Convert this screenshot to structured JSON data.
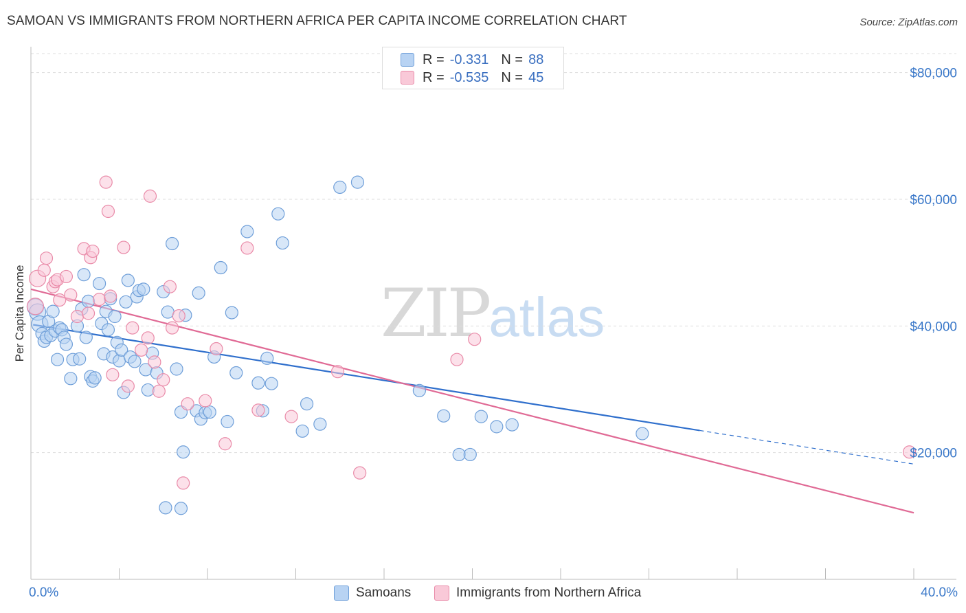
{
  "title": "SAMOAN VS IMMIGRANTS FROM NORTHERN AFRICA PER CAPITA INCOME CORRELATION CHART",
  "source": "Source: ZipAtlas.com",
  "watermark": {
    "zip": "ZIP",
    "atlas": "atlas"
  },
  "legend_top": [
    {
      "r_label": "R =",
      "r_value": "-0.331",
      "n_label": "N =",
      "n_value": "88"
    },
    {
      "r_label": "R =",
      "r_value": "-0.535",
      "n_label": "N =",
      "n_value": "45"
    }
  ],
  "legend_bottom": [
    "Samoans",
    "Immigrants from Northern Africa"
  ],
  "x_labels": {
    "left": "0.0%",
    "right": "40.0%"
  },
  "colors": {
    "blue": "#6f9fd9",
    "blue_fill": "#b8d3f3",
    "blue_line": "#2f6fcc",
    "pink": "#e98aa8",
    "pink_fill": "#f9c9d8",
    "pink_line": "#e06a95",
    "tick": "#3a78c9",
    "grid": "#dddddd"
  },
  "chart_data": {
    "type": "scatter",
    "title": "SAMOAN VS IMMIGRANTS FROM NORTHERN AFRICA PER CAPITA INCOME CORRELATION CHART",
    "xlabel": "",
    "ylabel": "Per Capita Income",
    "xlim": [
      0,
      40
    ],
    "ylim": [
      0,
      83000
    ],
    "y_ticks": [
      20000,
      40000,
      60000,
      80000
    ],
    "y_tick_labels": [
      "$20,000",
      "$40,000",
      "$60,000",
      "$80,000"
    ],
    "grid": true,
    "legend_placement": "bottom",
    "series": [
      {
        "name": "Samoans",
        "r": -0.331,
        "n": 88,
        "trend": {
          "x0": 0.1,
          "y0": 40200,
          "x1": 30.3,
          "y1": 23500,
          "dashed_to_x": 40,
          "dashed_to_y": 18200
        },
        "points": [
          [
            0.2,
            43000
          ],
          [
            0.3,
            42200
          ],
          [
            0.4,
            40300
          ],
          [
            0.5,
            38800
          ],
          [
            0.6,
            37600
          ],
          [
            0.7,
            38200
          ],
          [
            0.8,
            40700
          ],
          [
            0.9,
            38500
          ],
          [
            1.0,
            42300
          ],
          [
            1.1,
            39200
          ],
          [
            1.2,
            34700
          ],
          [
            1.3,
            39700
          ],
          [
            1.4,
            39400
          ],
          [
            1.5,
            38200
          ],
          [
            1.6,
            37100
          ],
          [
            1.8,
            31700
          ],
          [
            1.9,
            34700
          ],
          [
            2.1,
            40000
          ],
          [
            2.2,
            34800
          ],
          [
            2.3,
            42700
          ],
          [
            2.4,
            48100
          ],
          [
            2.5,
            38200
          ],
          [
            2.6,
            43900
          ],
          [
            2.7,
            32000
          ],
          [
            2.8,
            31300
          ],
          [
            2.9,
            31800
          ],
          [
            3.1,
            46700
          ],
          [
            3.2,
            40400
          ],
          [
            3.3,
            35600
          ],
          [
            3.4,
            42300
          ],
          [
            3.5,
            39400
          ],
          [
            3.6,
            44300
          ],
          [
            3.7,
            35100
          ],
          [
            3.8,
            41500
          ],
          [
            3.9,
            37400
          ],
          [
            4.0,
            34500
          ],
          [
            4.1,
            36200
          ],
          [
            4.2,
            29500
          ],
          [
            4.3,
            43800
          ],
          [
            4.4,
            47200
          ],
          [
            4.5,
            35100
          ],
          [
            4.7,
            34400
          ],
          [
            4.8,
            44600
          ],
          [
            4.9,
            45600
          ],
          [
            5.1,
            45800
          ],
          [
            5.2,
            33100
          ],
          [
            5.3,
            29900
          ],
          [
            5.5,
            35700
          ],
          [
            5.7,
            32600
          ],
          [
            6.0,
            45400
          ],
          [
            6.2,
            42200
          ],
          [
            6.4,
            53000
          ],
          [
            6.6,
            33200
          ],
          [
            6.8,
            26400
          ],
          [
            6.9,
            20100
          ],
          [
            7.0,
            41700
          ],
          [
            7.5,
            26600
          ],
          [
            7.6,
            45200
          ],
          [
            7.7,
            25300
          ],
          [
            7.9,
            26300
          ],
          [
            8.1,
            26400
          ],
          [
            8.3,
            35100
          ],
          [
            8.6,
            49200
          ],
          [
            8.9,
            24900
          ],
          [
            9.1,
            42100
          ],
          [
            9.3,
            32600
          ],
          [
            9.8,
            54900
          ],
          [
            10.3,
            31000
          ],
          [
            10.5,
            26600
          ],
          [
            10.7,
            34900
          ],
          [
            10.9,
            30900
          ],
          [
            11.2,
            57700
          ],
          [
            11.4,
            53100
          ],
          [
            12.3,
            23400
          ],
          [
            12.5,
            27700
          ],
          [
            13.1,
            24500
          ],
          [
            14.0,
            61900
          ],
          [
            14.8,
            62700
          ],
          [
            17.6,
            29800
          ],
          [
            18.7,
            25800
          ],
          [
            19.4,
            19700
          ],
          [
            19.9,
            19700
          ],
          [
            20.4,
            25700
          ],
          [
            21.1,
            24100
          ],
          [
            21.8,
            24400
          ],
          [
            27.7,
            23000
          ],
          [
            6.1,
            11300
          ],
          [
            6.8,
            11200
          ]
        ]
      },
      {
        "name": "Immigrants from Northern Africa",
        "r": -0.535,
        "n": 45,
        "trend": {
          "x0": 0.0,
          "y0": 45800,
          "x1": 40.0,
          "y1": 10500
        },
        "points": [
          [
            0.2,
            43100
          ],
          [
            0.3,
            47500
          ],
          [
            0.6,
            48800
          ],
          [
            0.7,
            50700
          ],
          [
            1.0,
            46200
          ],
          [
            1.1,
            47000
          ],
          [
            1.2,
            47300
          ],
          [
            1.3,
            44100
          ],
          [
            1.6,
            47800
          ],
          [
            1.8,
            44900
          ],
          [
            2.1,
            41500
          ],
          [
            2.4,
            52200
          ],
          [
            2.6,
            42000
          ],
          [
            2.7,
            50800
          ],
          [
            2.8,
            51800
          ],
          [
            3.1,
            44200
          ],
          [
            3.4,
            62700
          ],
          [
            3.5,
            58100
          ],
          [
            3.6,
            44700
          ],
          [
            3.7,
            32300
          ],
          [
            4.2,
            52400
          ],
          [
            4.4,
            30500
          ],
          [
            4.6,
            39700
          ],
          [
            5.0,
            36200
          ],
          [
            5.3,
            38100
          ],
          [
            5.4,
            60500
          ],
          [
            5.6,
            34300
          ],
          [
            5.8,
            29700
          ],
          [
            6.0,
            31500
          ],
          [
            6.3,
            46200
          ],
          [
            6.4,
            39700
          ],
          [
            6.7,
            41600
          ],
          [
            6.9,
            15200
          ],
          [
            7.1,
            27700
          ],
          [
            7.9,
            28200
          ],
          [
            8.4,
            36400
          ],
          [
            8.8,
            21400
          ],
          [
            9.8,
            52300
          ],
          [
            10.3,
            26700
          ],
          [
            11.8,
            25700
          ],
          [
            13.9,
            32800
          ],
          [
            14.9,
            16800
          ],
          [
            19.3,
            34700
          ],
          [
            20.1,
            37900
          ],
          [
            39.8,
            20100
          ]
        ]
      }
    ]
  }
}
